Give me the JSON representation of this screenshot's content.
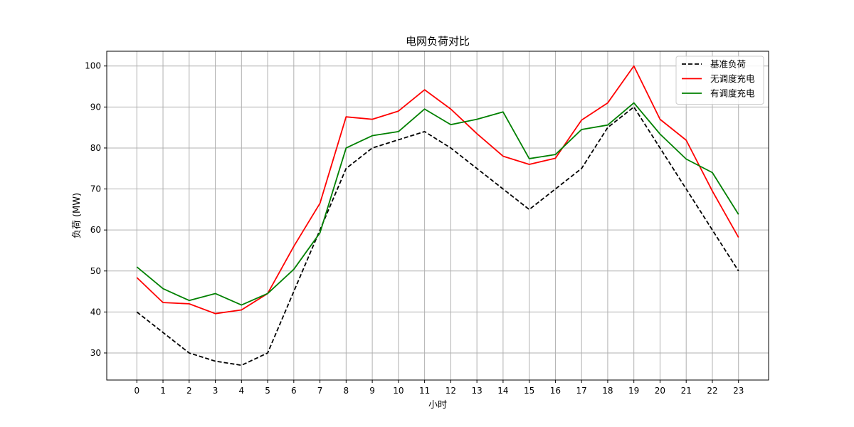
{
  "chart_data": {
    "type": "line",
    "title": "电网负荷对比",
    "xlabel": "小时",
    "ylabel": "负荷 (MW)",
    "x": [
      0,
      1,
      2,
      3,
      4,
      5,
      6,
      7,
      8,
      9,
      10,
      11,
      12,
      13,
      14,
      15,
      16,
      17,
      18,
      19,
      20,
      21,
      22,
      23
    ],
    "xlim": [
      -1.15,
      24.15
    ],
    "ylim": [
      23.4,
      103.6
    ],
    "yticks": [
      30,
      40,
      50,
      60,
      70,
      80,
      90,
      100
    ],
    "grid": true,
    "legend_position": "top-right",
    "series": [
      {
        "name": "基准负荷",
        "color": "#000000",
        "dash": true,
        "values": [
          40,
          35,
          30,
          28,
          27,
          30,
          45,
          60,
          75,
          80,
          82,
          84,
          80,
          75,
          70,
          65,
          70,
          75,
          85,
          90,
          80,
          70,
          60,
          50
        ]
      },
      {
        "name": "无调度充电",
        "color": "#ff0000",
        "dash": false,
        "values": [
          48.4,
          42.3,
          42.0,
          39.6,
          40.5,
          44.5,
          56.0,
          66.5,
          87.6,
          87.0,
          89.0,
          94.2,
          89.5,
          83.5,
          78.0,
          76.0,
          77.5,
          86.8,
          91.0,
          100.0,
          87.0,
          81.9,
          69.5,
          58.2
        ]
      },
      {
        "name": "有调度充电",
        "color": "#008000",
        "dash": false,
        "values": [
          51.0,
          45.7,
          42.8,
          44.5,
          41.7,
          44.5,
          50.4,
          59.3,
          80.0,
          83.0,
          84.0,
          89.5,
          85.7,
          87.0,
          88.8,
          77.4,
          78.4,
          84.5,
          85.6,
          91.0,
          83.4,
          77.3,
          74.0,
          63.8
        ]
      }
    ]
  }
}
